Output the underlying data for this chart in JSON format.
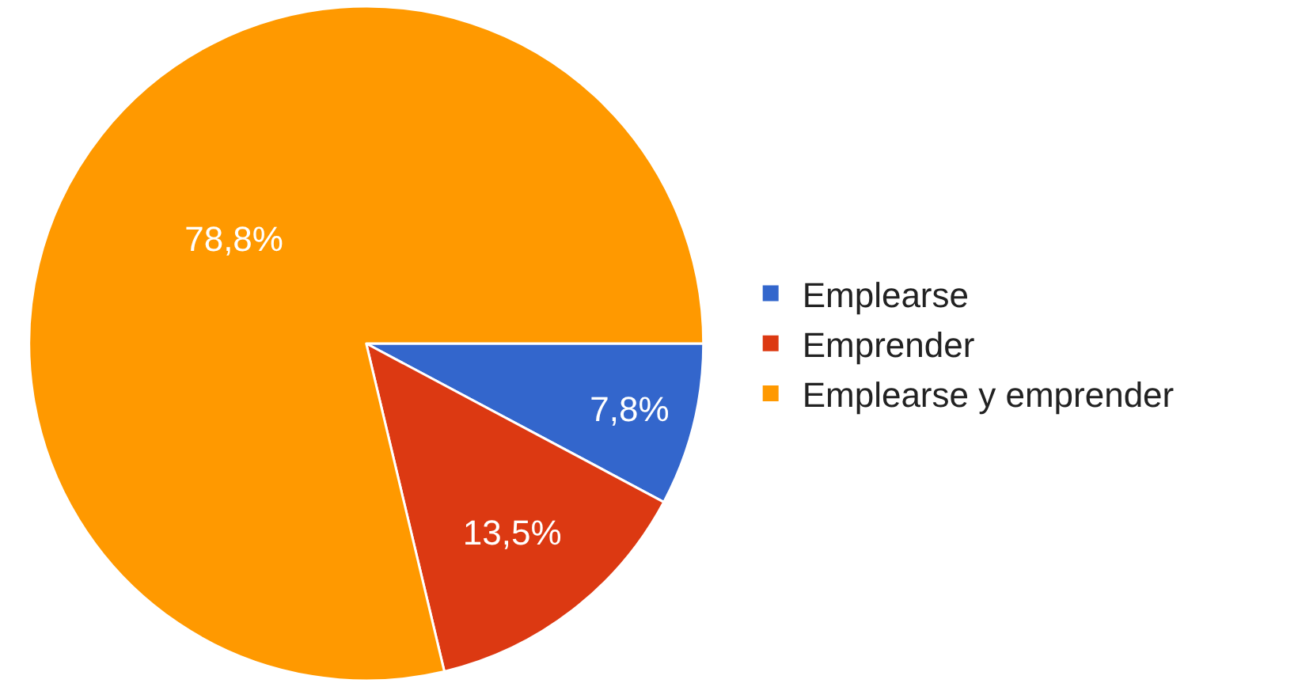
{
  "chart_data": {
    "type": "pie",
    "categories": [
      "Emplearse",
      "Emprender",
      "Emplearse y emprender"
    ],
    "values": [
      7.8,
      13.5,
      78.8
    ],
    "value_labels": [
      "7,8%",
      "13,5%",
      "78,8%"
    ],
    "colors": [
      "#3366cc",
      "#dc3912",
      "#ff9900"
    ],
    "legend": "right"
  }
}
